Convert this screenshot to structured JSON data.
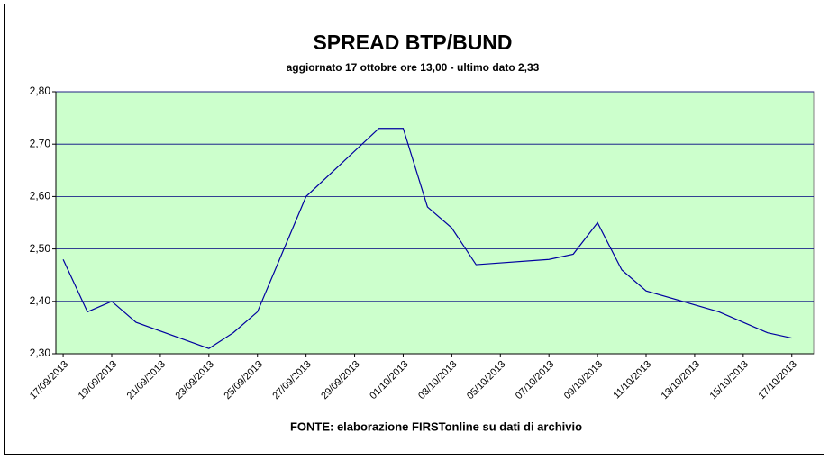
{
  "chart_data": {
    "type": "line",
    "title": "SPREAD BTP/BUND",
    "subtitle": "aggiornato 17 ottobre ore 13,00 - ultimo dato 2,33",
    "source": "FONTE:  elaborazione FIRSTonline su dati di archivio",
    "x": [
      0,
      1,
      2,
      3,
      6,
      7,
      8,
      9,
      10,
      13,
      14,
      15,
      16,
      17,
      20,
      21,
      22,
      23,
      24,
      27,
      28,
      29,
      30
    ],
    "series": [
      {
        "color": "#0000a0",
        "values": [
          2.48,
          2.38,
          2.4,
          2.36,
          2.31,
          2.34,
          2.38,
          2.49,
          2.6,
          2.73,
          2.73,
          2.58,
          2.54,
          2.47,
          2.48,
          2.49,
          2.55,
          2.46,
          2.42,
          2.38,
          2.36,
          2.34,
          2.33
        ]
      }
    ],
    "xlim": [
      -0.3,
      30.9
    ],
    "xticks": [
      {
        "value": 0,
        "label": "17/09/2013"
      },
      {
        "value": 2,
        "label": "19/09/2013"
      },
      {
        "value": 4,
        "label": "21/09/2013"
      },
      {
        "value": 6,
        "label": "23/09/2013"
      },
      {
        "value": 8,
        "label": "25/09/2013"
      },
      {
        "value": 10,
        "label": "27/09/2013"
      },
      {
        "value": 12,
        "label": "29/09/2013"
      },
      {
        "value": 14,
        "label": "01/10/2013"
      },
      {
        "value": 16,
        "label": "03/10/2013"
      },
      {
        "value": 18,
        "label": "05/10/2013"
      },
      {
        "value": 20,
        "label": "07/10/2013"
      },
      {
        "value": 22,
        "label": "09/10/2013"
      },
      {
        "value": 24,
        "label": "11/10/2013"
      },
      {
        "value": 26,
        "label": "13/10/2013"
      },
      {
        "value": 28,
        "label": "15/10/2013"
      },
      {
        "value": 30,
        "label": "17/10/2013"
      }
    ],
    "ylim": [
      2.3,
      2.8
    ],
    "yticks": [
      {
        "value": 2.3,
        "label": "2,30"
      },
      {
        "value": 2.4,
        "label": "2,40"
      },
      {
        "value": 2.5,
        "label": "2,50"
      },
      {
        "value": 2.6,
        "label": "2,60"
      },
      {
        "value": 2.7,
        "label": "2,70"
      },
      {
        "value": 2.8,
        "label": "2,80"
      }
    ],
    "grid": true
  }
}
